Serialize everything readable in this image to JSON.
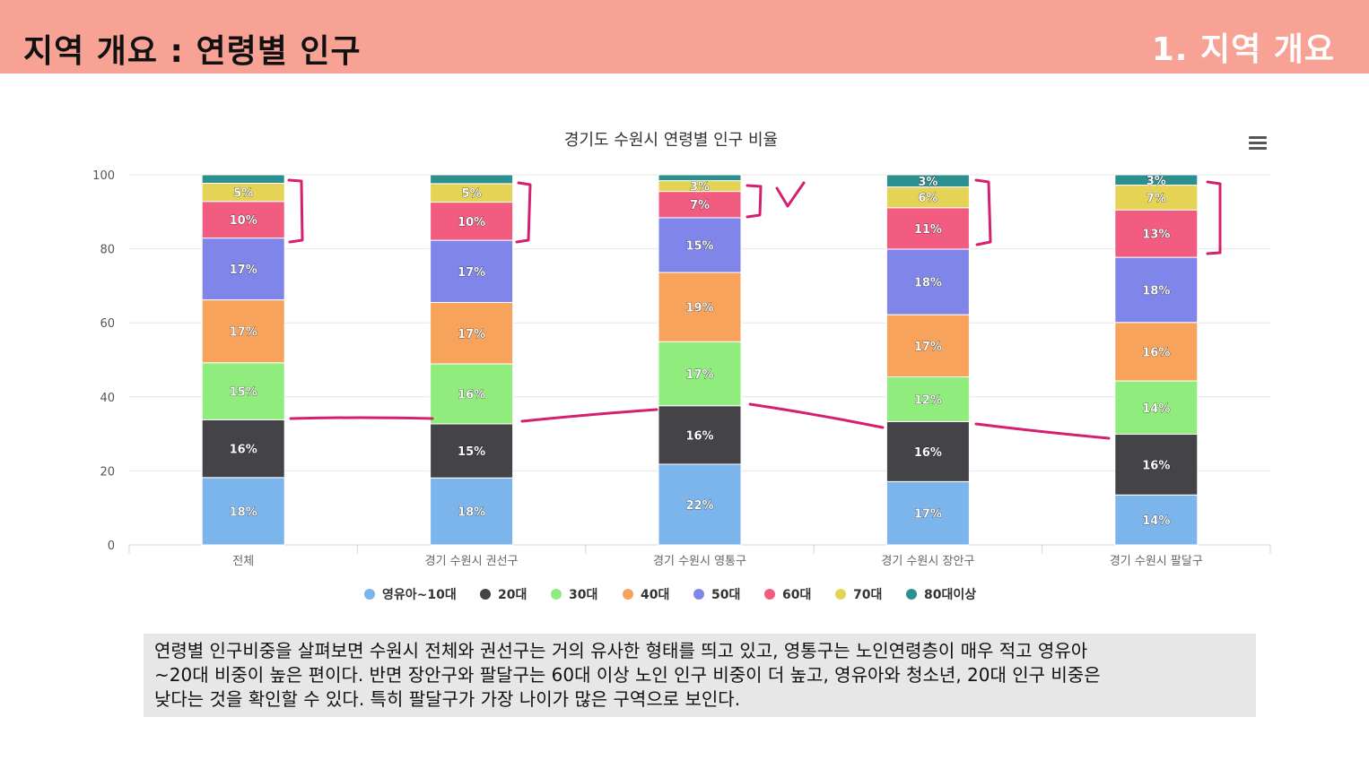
{
  "header": {
    "title": "지역 개요 : 연령별 인구",
    "section": "1. 지역 개요"
  },
  "colors": {
    "header_bg": "#f7a295",
    "annotation_ink": "#d4206e",
    "segment_text": "#ffffff"
  },
  "chart_data": {
    "type": "bar",
    "stacked": true,
    "title": "경기도 수원시 연령별 인구 비율",
    "xlabel": "",
    "ylabel": "",
    "ylim": [
      0,
      100
    ],
    "yticks": [
      0,
      20,
      40,
      60,
      80,
      100
    ],
    "grid": true,
    "legend_position": "bottom",
    "categories": [
      "전체",
      "경기 수원시 권선구",
      "경기 수원시 영통구",
      "경기 수원시 장안구",
      "경기 수원시 팔달구"
    ],
    "series": [
      {
        "name": "영유아~10대",
        "color": "#7cb5ec",
        "values": [
          18.2,
          18.1,
          21.8,
          17.1,
          13.5
        ],
        "labels": [
          "18%",
          "18%",
          "22%",
          "17%",
          "14%"
        ]
      },
      {
        "name": "20대",
        "color": "#434348",
        "values": [
          15.6,
          14.6,
          15.8,
          16.2,
          16.4
        ],
        "labels": [
          "16%",
          "15%",
          "16%",
          "16%",
          "16%"
        ]
      },
      {
        "name": "30대",
        "color": "#90ed7d",
        "values": [
          15.4,
          16.2,
          17.3,
          12.1,
          14.4
        ],
        "labels": [
          "15%",
          "16%",
          "17%",
          "12%",
          "14%"
        ]
      },
      {
        "name": "40대",
        "color": "#f7a35c",
        "values": [
          17.0,
          16.6,
          18.7,
          16.8,
          15.8
        ],
        "labels": [
          "17%",
          "17%",
          "19%",
          "17%",
          "16%"
        ]
      },
      {
        "name": "50대",
        "color": "#8085e9",
        "values": [
          16.7,
          16.8,
          14.8,
          17.7,
          17.6
        ],
        "labels": [
          "17%",
          "17%",
          "15%",
          "18%",
          "18%"
        ]
      },
      {
        "name": "60대",
        "color": "#f15c80",
        "values": [
          9.9,
          10.3,
          7.1,
          11.2,
          12.8
        ],
        "labels": [
          "10%",
          "10%",
          "7%",
          "11%",
          "13%"
        ]
      },
      {
        "name": "70대",
        "color": "#e4d354",
        "values": [
          4.9,
          5.0,
          2.9,
          5.6,
          6.7
        ],
        "labels": [
          "5%",
          "5%",
          "3%",
          "6%",
          "7%"
        ]
      },
      {
        "name": "80대이상",
        "color": "#2b908f",
        "values": [
          2.3,
          2.4,
          1.6,
          3.3,
          2.8
        ],
        "labels": [
          "",
          "",
          "",
          "3%",
          "3%"
        ]
      }
    ]
  },
  "caption": {
    "lines": [
      "연령별 인구비중을 살펴보면 수원시 전체와 권선구는 거의 유사한 형태를 띄고 있고, 영통구는 노인연령층이 매우 적고  영유아",
      "~20대 비중이 높은 편이다. 반면 장안구와 팔달구는 60대 이상 노인 인구 비중이 더 높고, 영유아와 청소년, 20대 인구 비중은",
      "낮다는 것을 확인할 수 있다. 특히 팔달구가 가장 나이가 많은 구역으로 보인다."
    ]
  }
}
